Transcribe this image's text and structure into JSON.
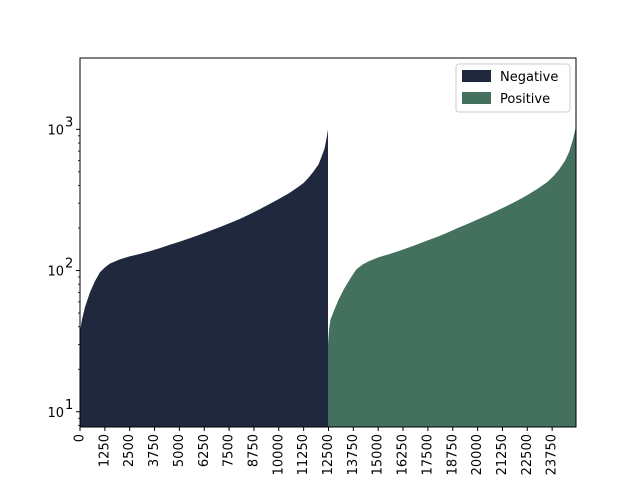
{
  "chart_data": {
    "type": "area",
    "yscale": "log",
    "xlim": [
      0,
      24950
    ],
    "ylim": [
      7.8,
      3200
    ],
    "grid": false,
    "legend_position": "top-right",
    "x_ticks": [
      0,
      1250,
      2500,
      3750,
      5000,
      6250,
      7500,
      8750,
      10000,
      11250,
      12500,
      13750,
      15000,
      16250,
      17500,
      18750,
      20000,
      21250,
      22500,
      23750
    ],
    "x_tick_labels": [
      "0",
      "1250",
      "2500",
      "3750",
      "5000",
      "6250",
      "7500",
      "8750",
      "10000",
      "11250",
      "12500",
      "13750",
      "15000",
      "16250",
      "17500",
      "18750",
      "20000",
      "21250",
      "22500",
      "23750"
    ],
    "y_ticks": [
      10,
      100,
      1000
    ],
    "y_tick_labels": [
      "10",
      "10",
      "10"
    ],
    "y_tick_exponents": [
      "1",
      "2",
      "3"
    ],
    "series": [
      {
        "name": "Negative",
        "color": "#20283e",
        "x": [
          0,
          100,
          250,
          500,
          750,
          1000,
          1250,
          1500,
          2000,
          2500,
          3000,
          3500,
          4000,
          4500,
          5000,
          5500,
          6000,
          6500,
          7000,
          7500,
          8000,
          8500,
          9000,
          9500,
          10000,
          10500,
          11000,
          11250,
          11500,
          11750,
          12000,
          12150,
          12300,
          12400,
          12475
        ],
        "values": [
          37,
          45,
          55,
          70,
          84,
          97,
          105,
          112,
          120,
          126,
          131,
          137,
          144,
          152,
          160,
          169,
          179,
          190,
          202,
          216,
          231,
          249,
          270,
          294,
          321,
          352,
          393,
          418,
          455,
          504,
          565,
          640,
          730,
          860,
          1000
        ]
      },
      {
        "name": "Positive",
        "color": "#44705e",
        "x": [
          12475,
          12525,
          12600,
          12800,
          13000,
          13300,
          13600,
          13900,
          14200,
          14500,
          15000,
          15500,
          16000,
          16500,
          17000,
          17500,
          18000,
          18500,
          19000,
          19500,
          20000,
          20500,
          21000,
          21500,
          22000,
          22500,
          23000,
          23500,
          23800,
          24100,
          24400,
          24600,
          24800,
          24950
        ],
        "values": [
          30,
          38,
          45,
          53,
          62,
          75,
          88,
          102,
          110,
          116,
          124,
          130,
          137,
          145,
          154,
          164,
          174,
          186,
          200,
          214,
          230,
          247,
          266,
          288,
          313,
          342,
          378,
          423,
          463,
          520,
          600,
          690,
          850,
          1050
        ]
      }
    ]
  }
}
